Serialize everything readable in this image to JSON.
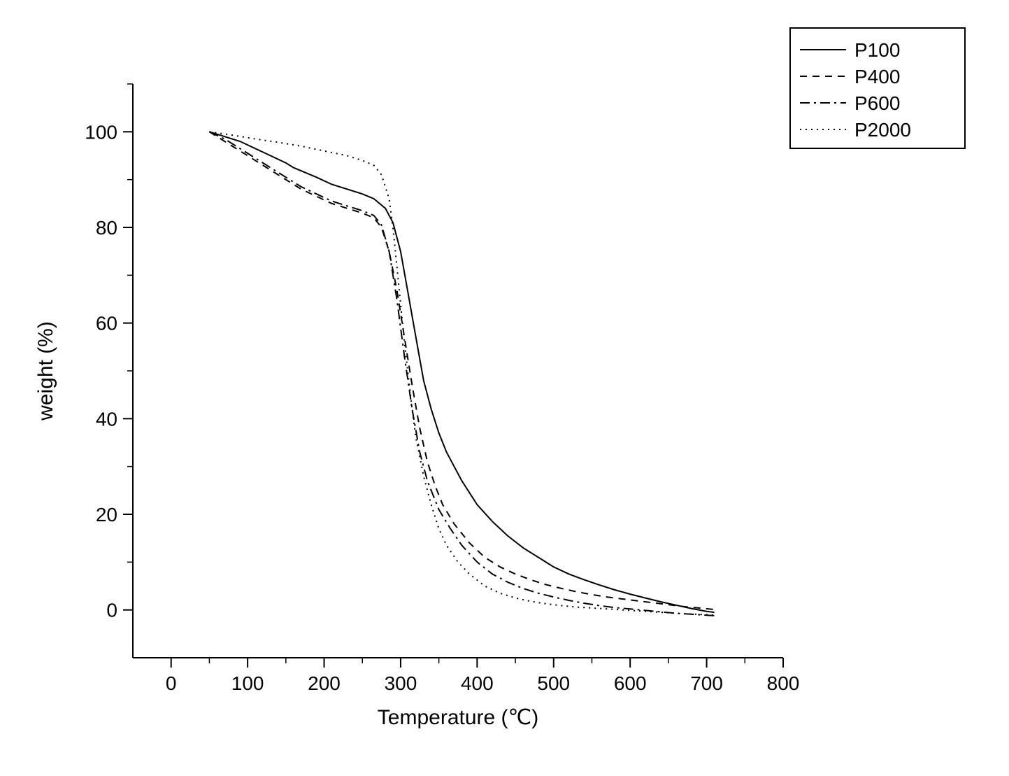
{
  "chart": {
    "type": "line",
    "background_color": "#ffffff",
    "axis_color": "#000000",
    "line_color": "#000000",
    "line_width": 2,
    "x": {
      "label": "Temperature (℃)",
      "min": -50,
      "max": 800,
      "ticks": [
        0,
        100,
        200,
        300,
        400,
        500,
        600,
        700,
        800
      ],
      "minor_tick_step": 50,
      "label_fontsize": 30,
      "tick_fontsize": 28
    },
    "y": {
      "label": "weight (%)",
      "min": -10,
      "max": 110,
      "ticks": [
        0,
        20,
        40,
        60,
        80,
        100
      ],
      "minor_tick_step": 10,
      "label_fontsize": 30,
      "tick_fontsize": 28
    },
    "legend": {
      "position": "top-right",
      "border": true,
      "items": [
        "P100",
        "P400",
        "P600",
        "P2000"
      ]
    },
    "series": [
      {
        "name": "P100",
        "dash": "solid",
        "points": [
          [
            50,
            100
          ],
          [
            70,
            99
          ],
          [
            90,
            98
          ],
          [
            110,
            96.5
          ],
          [
            130,
            95
          ],
          [
            150,
            93.5
          ],
          [
            160,
            92.5
          ],
          [
            175,
            91.5
          ],
          [
            190,
            90.5
          ],
          [
            210,
            89
          ],
          [
            230,
            88
          ],
          [
            250,
            87
          ],
          [
            265,
            86
          ],
          [
            280,
            84
          ],
          [
            290,
            81
          ],
          [
            300,
            75
          ],
          [
            310,
            66
          ],
          [
            320,
            57
          ],
          [
            330,
            48
          ],
          [
            340,
            42
          ],
          [
            350,
            37
          ],
          [
            360,
            33
          ],
          [
            380,
            27
          ],
          [
            400,
            22
          ],
          [
            420,
            18.5
          ],
          [
            440,
            15.5
          ],
          [
            460,
            13
          ],
          [
            480,
            11
          ],
          [
            500,
            9
          ],
          [
            520,
            7.5
          ],
          [
            540,
            6.3
          ],
          [
            560,
            5.2
          ],
          [
            580,
            4.2
          ],
          [
            600,
            3.3
          ],
          [
            620,
            2.5
          ],
          [
            640,
            1.7
          ],
          [
            660,
            1
          ],
          [
            680,
            0.3
          ],
          [
            700,
            -0.3
          ],
          [
            710,
            -0.5
          ]
        ]
      },
      {
        "name": "P400",
        "dash": "dash",
        "points": [
          [
            50,
            100
          ],
          [
            70,
            98
          ],
          [
            90,
            96
          ],
          [
            110,
            94
          ],
          [
            130,
            92
          ],
          [
            150,
            90
          ],
          [
            170,
            88
          ],
          [
            190,
            86.5
          ],
          [
            210,
            85
          ],
          [
            230,
            84
          ],
          [
            250,
            83
          ],
          [
            265,
            82
          ],
          [
            275,
            80
          ],
          [
            285,
            75
          ],
          [
            295,
            67
          ],
          [
            305,
            57
          ],
          [
            315,
            47
          ],
          [
            325,
            38
          ],
          [
            335,
            31
          ],
          [
            345,
            26
          ],
          [
            355,
            22
          ],
          [
            370,
            18
          ],
          [
            390,
            14
          ],
          [
            410,
            11
          ],
          [
            430,
            9
          ],
          [
            450,
            7.5
          ],
          [
            470,
            6.3
          ],
          [
            490,
            5.3
          ],
          [
            510,
            4.5
          ],
          [
            530,
            3.8
          ],
          [
            550,
            3.2
          ],
          [
            570,
            2.7
          ],
          [
            590,
            2.3
          ],
          [
            610,
            1.9
          ],
          [
            630,
            1.5
          ],
          [
            650,
            1.1
          ],
          [
            670,
            0.7
          ],
          [
            690,
            0.4
          ],
          [
            710,
            0.1
          ]
        ]
      },
      {
        "name": "P600",
        "dash": "dashdot",
        "points": [
          [
            50,
            100
          ],
          [
            70,
            98.5
          ],
          [
            90,
            96.5
          ],
          [
            110,
            94.5
          ],
          [
            130,
            92.5
          ],
          [
            150,
            90.5
          ],
          [
            170,
            88.5
          ],
          [
            190,
            87
          ],
          [
            210,
            85.5
          ],
          [
            230,
            84.5
          ],
          [
            250,
            83.5
          ],
          [
            265,
            82.5
          ],
          [
            275,
            80.5
          ],
          [
            285,
            75
          ],
          [
            295,
            65
          ],
          [
            305,
            53
          ],
          [
            315,
            42
          ],
          [
            325,
            33
          ],
          [
            335,
            27
          ],
          [
            350,
            21
          ],
          [
            365,
            17
          ],
          [
            380,
            13.5
          ],
          [
            400,
            10
          ],
          [
            420,
            7.5
          ],
          [
            440,
            5.8
          ],
          [
            460,
            4.5
          ],
          [
            480,
            3.5
          ],
          [
            500,
            2.7
          ],
          [
            520,
            2
          ],
          [
            540,
            1.4
          ],
          [
            560,
            0.9
          ],
          [
            580,
            0.5
          ],
          [
            600,
            0.2
          ],
          [
            620,
            -0.1
          ],
          [
            640,
            -0.4
          ],
          [
            660,
            -0.7
          ],
          [
            680,
            -0.9
          ],
          [
            700,
            -1.1
          ],
          [
            710,
            -1.2
          ]
        ]
      },
      {
        "name": "P2000",
        "dash": "dot",
        "points": [
          [
            50,
            100
          ],
          [
            80,
            99.3
          ],
          [
            110,
            98.5
          ],
          [
            140,
            97.8
          ],
          [
            170,
            97
          ],
          [
            200,
            96
          ],
          [
            230,
            95
          ],
          [
            250,
            94
          ],
          [
            265,
            93
          ],
          [
            275,
            91
          ],
          [
            285,
            86
          ],
          [
            290,
            80
          ],
          [
            295,
            72
          ],
          [
            300,
            64
          ],
          [
            305,
            56
          ],
          [
            310,
            49
          ],
          [
            315,
            42
          ],
          [
            320,
            36
          ],
          [
            330,
            28
          ],
          [
            340,
            22
          ],
          [
            350,
            17
          ],
          [
            360,
            13.5
          ],
          [
            375,
            10
          ],
          [
            390,
            7.5
          ],
          [
            410,
            5
          ],
          [
            430,
            3.5
          ],
          [
            450,
            2.5
          ],
          [
            470,
            1.8
          ],
          [
            490,
            1.3
          ],
          [
            510,
            0.9
          ],
          [
            530,
            0.6
          ],
          [
            550,
            0.4
          ],
          [
            580,
            0.1
          ],
          [
            610,
            -0.2
          ],
          [
            640,
            -0.5
          ],
          [
            670,
            -0.8
          ],
          [
            700,
            -1
          ],
          [
            710,
            -1.1
          ]
        ]
      }
    ]
  }
}
